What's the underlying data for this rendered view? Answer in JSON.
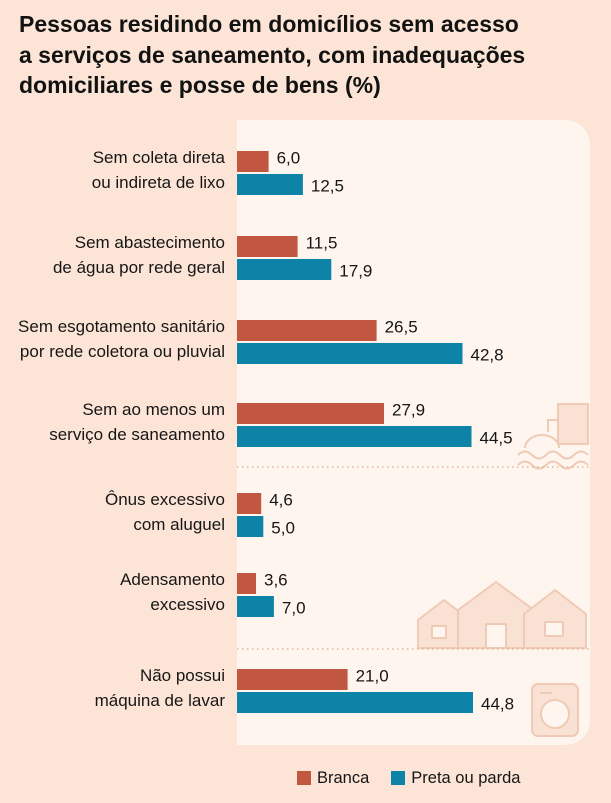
{
  "colors": {
    "background": "#fce5d6",
    "panel": "#fef5ee"
  },
  "chart_data": {
    "type": "bar",
    "orientation": "horizontal",
    "title": "Pessoas residindo em domicílios sem acesso\na serviços de saneamento, com inadequações\ndomiciliares e posse de bens (%)",
    "categories": [
      "Sem coleta direta\nou indireta de lixo",
      "Sem abastecimento\nde água por rede geral",
      "Sem esgotamento sanitário\npor rede coletora ou pluvial",
      "Sem ao menos um\nserviço de saneamento",
      "Ônus excessivo\ncom aluguel",
      "Adensamento\nexcessivo",
      "Não possui\nmáquina de lavar"
    ],
    "series": [
      {
        "name": "Branca",
        "color": "#c15740",
        "values": [
          6.0,
          11.5,
          26.5,
          27.9,
          4.6,
          3.6,
          21.0
        ]
      },
      {
        "name": "Preta ou parda",
        "color": "#0d84a7",
        "values": [
          12.5,
          17.9,
          42.8,
          44.5,
          5.0,
          7.0,
          44.8
        ]
      }
    ],
    "xlim": [
      0,
      67
    ],
    "grid": false,
    "legend_position": "bottom"
  }
}
